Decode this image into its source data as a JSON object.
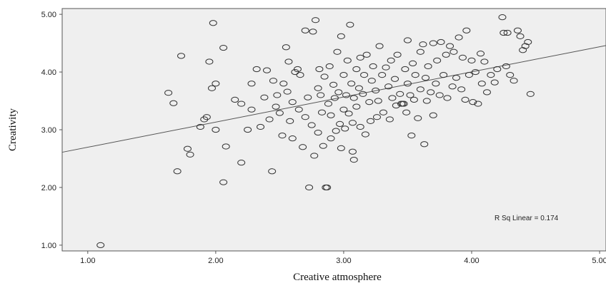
{
  "chart_data": {
    "type": "scatter",
    "xlabel": "Creative atmosphere",
    "ylabel": "Creativity",
    "xlim": [
      0.8,
      5.05
    ],
    "ylim": [
      0.9,
      5.1
    ],
    "xticks": [
      "1.00",
      "2.00",
      "3.00",
      "4.00",
      "5.00"
    ],
    "yticks": [
      "1.00",
      "2.00",
      "3.00",
      "4.00",
      "5.00"
    ],
    "grid": false,
    "background_color": "#efefef",
    "marker_color": "#333333",
    "fit_line": {
      "x": [
        0.8,
        5.05
      ],
      "y": [
        2.61,
        4.46
      ]
    },
    "annotation": "R Sq Linear = 0.174",
    "points": [
      [
        1.1,
        1.0
      ],
      [
        1.63,
        3.64
      ],
      [
        1.67,
        3.46
      ],
      [
        1.7,
        2.28
      ],
      [
        1.73,
        4.28
      ],
      [
        1.78,
        2.67
      ],
      [
        1.8,
        2.57
      ],
      [
        1.88,
        3.05
      ],
      [
        1.91,
        3.18
      ],
      [
        1.93,
        3.22
      ],
      [
        1.95,
        4.18
      ],
      [
        1.97,
        3.72
      ],
      [
        1.98,
        4.85
      ],
      [
        2.0,
        3.8
      ],
      [
        2.0,
        3.0
      ],
      [
        2.06,
        4.42
      ],
      [
        2.06,
        2.09
      ],
      [
        2.08,
        2.71
      ],
      [
        2.15,
        3.52
      ],
      [
        2.2,
        2.43
      ],
      [
        2.2,
        3.45
      ],
      [
        2.25,
        3.0
      ],
      [
        2.28,
        3.8
      ],
      [
        2.28,
        3.35
      ],
      [
        2.32,
        4.05
      ],
      [
        2.35,
        3.05
      ],
      [
        2.38,
        3.56
      ],
      [
        2.4,
        4.03
      ],
      [
        2.42,
        3.18
      ],
      [
        2.44,
        2.28
      ],
      [
        2.45,
        3.85
      ],
      [
        2.47,
        3.4
      ],
      [
        2.48,
        3.6
      ],
      [
        2.5,
        3.29
      ],
      [
        2.52,
        2.9
      ],
      [
        2.53,
        3.8
      ],
      [
        2.55,
        4.43
      ],
      [
        2.56,
        3.66
      ],
      [
        2.57,
        4.18
      ],
      [
        2.58,
        3.15
      ],
      [
        2.6,
        2.85
      ],
      [
        2.6,
        3.48
      ],
      [
        2.62,
        4.0
      ],
      [
        2.64,
        4.05
      ],
      [
        2.65,
        3.35
      ],
      [
        2.66,
        3.95
      ],
      [
        2.68,
        2.7
      ],
      [
        2.7,
        4.72
      ],
      [
        2.7,
        3.22
      ],
      [
        2.72,
        3.56
      ],
      [
        2.73,
        2.0
      ],
      [
        2.75,
        3.08
      ],
      [
        2.76,
        4.7
      ],
      [
        2.77,
        2.55
      ],
      [
        2.78,
        4.9
      ],
      [
        2.8,
        3.72
      ],
      [
        2.8,
        2.95
      ],
      [
        2.81,
        4.05
      ],
      [
        2.82,
        3.6
      ],
      [
        2.83,
        3.3
      ],
      [
        2.84,
        2.72
      ],
      [
        2.85,
        3.92
      ],
      [
        2.86,
        2.0
      ],
      [
        2.87,
        2.0
      ],
      [
        2.88,
        3.45
      ],
      [
        2.89,
        4.1
      ],
      [
        2.9,
        3.25
      ],
      [
        2.9,
        2.85
      ],
      [
        2.92,
        3.78
      ],
      [
        2.93,
        3.55
      ],
      [
        2.94,
        2.98
      ],
      [
        2.95,
        4.35
      ],
      [
        2.96,
        3.65
      ],
      [
        2.97,
        3.1
      ],
      [
        2.98,
        2.68
      ],
      [
        2.98,
        4.62
      ],
      [
        3.0,
        3.35
      ],
      [
        3.0,
        3.95
      ],
      [
        3.01,
        3.02
      ],
      [
        3.02,
        3.6
      ],
      [
        3.03,
        4.2
      ],
      [
        3.04,
        3.28
      ],
      [
        3.05,
        4.82
      ],
      [
        3.06,
        3.8
      ],
      [
        3.07,
        2.62
      ],
      [
        3.07,
        3.12
      ],
      [
        3.08,
        2.48
      ],
      [
        3.08,
        3.55
      ],
      [
        3.1,
        4.05
      ],
      [
        3.1,
        3.4
      ],
      [
        3.12,
        3.72
      ],
      [
        3.13,
        4.25
      ],
      [
        3.13,
        3.05
      ],
      [
        3.15,
        3.62
      ],
      [
        3.16,
        3.95
      ],
      [
        3.17,
        2.92
      ],
      [
        3.18,
        4.3
      ],
      [
        3.2,
        3.48
      ],
      [
        3.21,
        3.15
      ],
      [
        3.22,
        3.85
      ],
      [
        3.23,
        4.1
      ],
      [
        3.25,
        3.68
      ],
      [
        3.26,
        3.22
      ],
      [
        3.27,
        3.5
      ],
      [
        3.28,
        4.45
      ],
      [
        3.3,
        3.95
      ],
      [
        3.31,
        3.3
      ],
      [
        3.33,
        4.08
      ],
      [
        3.35,
        3.75
      ],
      [
        3.36,
        3.18
      ],
      [
        3.37,
        4.2
      ],
      [
        3.38,
        3.55
      ],
      [
        3.4,
        3.88
      ],
      [
        3.41,
        3.42
      ],
      [
        3.42,
        4.3
      ],
      [
        3.44,
        3.62
      ],
      [
        3.45,
        3.45
      ],
      [
        3.46,
        3.45
      ],
      [
        3.47,
        3.45
      ],
      [
        3.48,
        4.05
      ],
      [
        3.49,
        3.3
      ],
      [
        3.5,
        3.8
      ],
      [
        3.5,
        4.55
      ],
      [
        3.52,
        3.6
      ],
      [
        3.53,
        2.9
      ],
      [
        3.54,
        4.15
      ],
      [
        3.55,
        3.52
      ],
      [
        3.56,
        3.95
      ],
      [
        3.58,
        3.2
      ],
      [
        3.6,
        4.35
      ],
      [
        3.6,
        3.7
      ],
      [
        3.62,
        4.48
      ],
      [
        3.63,
        2.75
      ],
      [
        3.64,
        3.9
      ],
      [
        3.65,
        3.5
      ],
      [
        3.66,
        4.1
      ],
      [
        3.68,
        3.65
      ],
      [
        3.7,
        4.5
      ],
      [
        3.7,
        3.25
      ],
      [
        3.72,
        3.8
      ],
      [
        3.73,
        4.2
      ],
      [
        3.75,
        3.6
      ],
      [
        3.76,
        4.52
      ],
      [
        3.78,
        3.95
      ],
      [
        3.8,
        4.3
      ],
      [
        3.81,
        3.55
      ],
      [
        3.83,
        4.45
      ],
      [
        3.85,
        3.75
      ],
      [
        3.86,
        4.35
      ],
      [
        3.88,
        3.9
      ],
      [
        3.9,
        4.6
      ],
      [
        3.92,
        3.7
      ],
      [
        3.93,
        4.25
      ],
      [
        3.95,
        3.52
      ],
      [
        3.96,
        4.72
      ],
      [
        3.98,
        3.95
      ],
      [
        4.0,
        4.2
      ],
      [
        4.01,
        3.48
      ],
      [
        4.03,
        4.0
      ],
      [
        4.05,
        3.45
      ],
      [
        4.07,
        4.32
      ],
      [
        4.08,
        3.8
      ],
      [
        4.1,
        4.18
      ],
      [
        4.12,
        3.65
      ],
      [
        4.15,
        3.95
      ],
      [
        4.18,
        3.82
      ],
      [
        4.2,
        4.05
      ],
      [
        4.24,
        4.95
      ],
      [
        4.25,
        4.68
      ],
      [
        4.27,
        4.1
      ],
      [
        4.28,
        4.68
      ],
      [
        4.3,
        3.95
      ],
      [
        4.33,
        3.85
      ],
      [
        4.36,
        4.72
      ],
      [
        4.38,
        4.62
      ],
      [
        4.4,
        4.38
      ],
      [
        4.42,
        4.45
      ],
      [
        4.44,
        4.52
      ],
      [
        4.46,
        3.62
      ]
    ]
  }
}
